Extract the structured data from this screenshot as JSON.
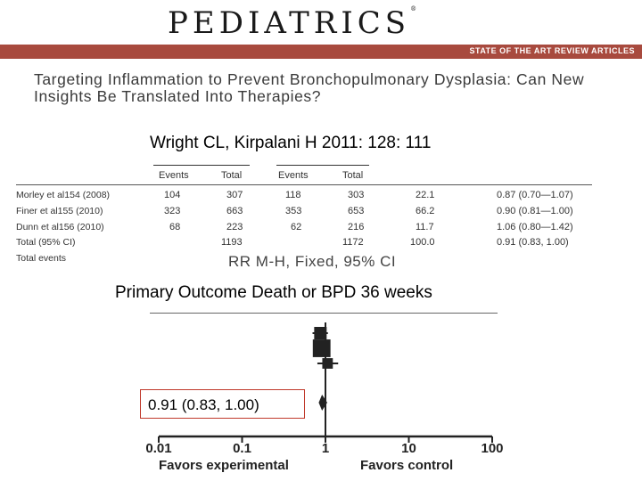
{
  "header": {
    "journal": "PEDIATRICS",
    "registered_mark": "®",
    "band_text": "STATE OF THE ART REVIEW ARTICLES"
  },
  "article": {
    "title": "Targeting Inflammation to Prevent Bronchopulmonary Dysplasia: Can New Insights Be Translated Into Therapies?",
    "citation": "Wright CL, Kirpalani H 2011: 128: 111"
  },
  "table": {
    "group_headers": [
      [
        "Events",
        "Total"
      ],
      [
        "Events",
        "Total"
      ]
    ],
    "rows": [
      {
        "study": "Morley et al154 (2008)",
        "e1": "104",
        "t1": "307",
        "e2": "118",
        "t2": "303",
        "weight": "22.1",
        "rr": "0.87 (0.70—1.07)"
      },
      {
        "study": "Finer et al155 (2010)",
        "e1": "323",
        "t1": "663",
        "e2": "353",
        "t2": "653",
        "weight": "66.2",
        "rr": "0.90 (0.81—1.00)"
      },
      {
        "study": "Dunn et al156 (2010)",
        "e1": "68",
        "t1": "223",
        "e2": "62",
        "t2": "216",
        "weight": "11.7",
        "rr": "1.06 (0.80—1.42)"
      },
      {
        "study": "Total (95% CI)",
        "e1": "",
        "t1": "1193",
        "e2": "",
        "t2": "1172",
        "weight": "100.0",
        "rr": "0.91 (0.83, 1.00)"
      }
    ],
    "total_events_label": "Total events",
    "rr_header": "RR M-H, Fixed, 95% CI"
  },
  "forest": {
    "outcome": "Primary Outcome Death or BPD 36 weeks",
    "pooled_label": "0.91 (0.83, 1.00)",
    "axis_ticks": [
      "0.01",
      "0.1",
      "1",
      "10",
      "100"
    ],
    "favors_left": "Favors experimental",
    "favors_right": "Favors control"
  },
  "chart_data": {
    "type": "scatter",
    "scale": "log",
    "xlim": [
      0.01,
      100
    ],
    "x_ticks": [
      0.01,
      0.1,
      1,
      10,
      100
    ],
    "series": [
      {
        "name": "Morley et al154 (2008)",
        "rr": 0.87,
        "ci": [
          0.7,
          1.07
        ],
        "weight": 22.1
      },
      {
        "name": "Finer et al155 (2010)",
        "rr": 0.9,
        "ci": [
          0.81,
          1.0
        ],
        "weight": 66.2
      },
      {
        "name": "Dunn et al156 (2010)",
        "rr": 1.06,
        "ci": [
          0.8,
          1.42
        ],
        "weight": 11.7
      }
    ],
    "pooled": {
      "rr": 0.91,
      "ci": [
        0.83,
        1.0
      ]
    }
  }
}
